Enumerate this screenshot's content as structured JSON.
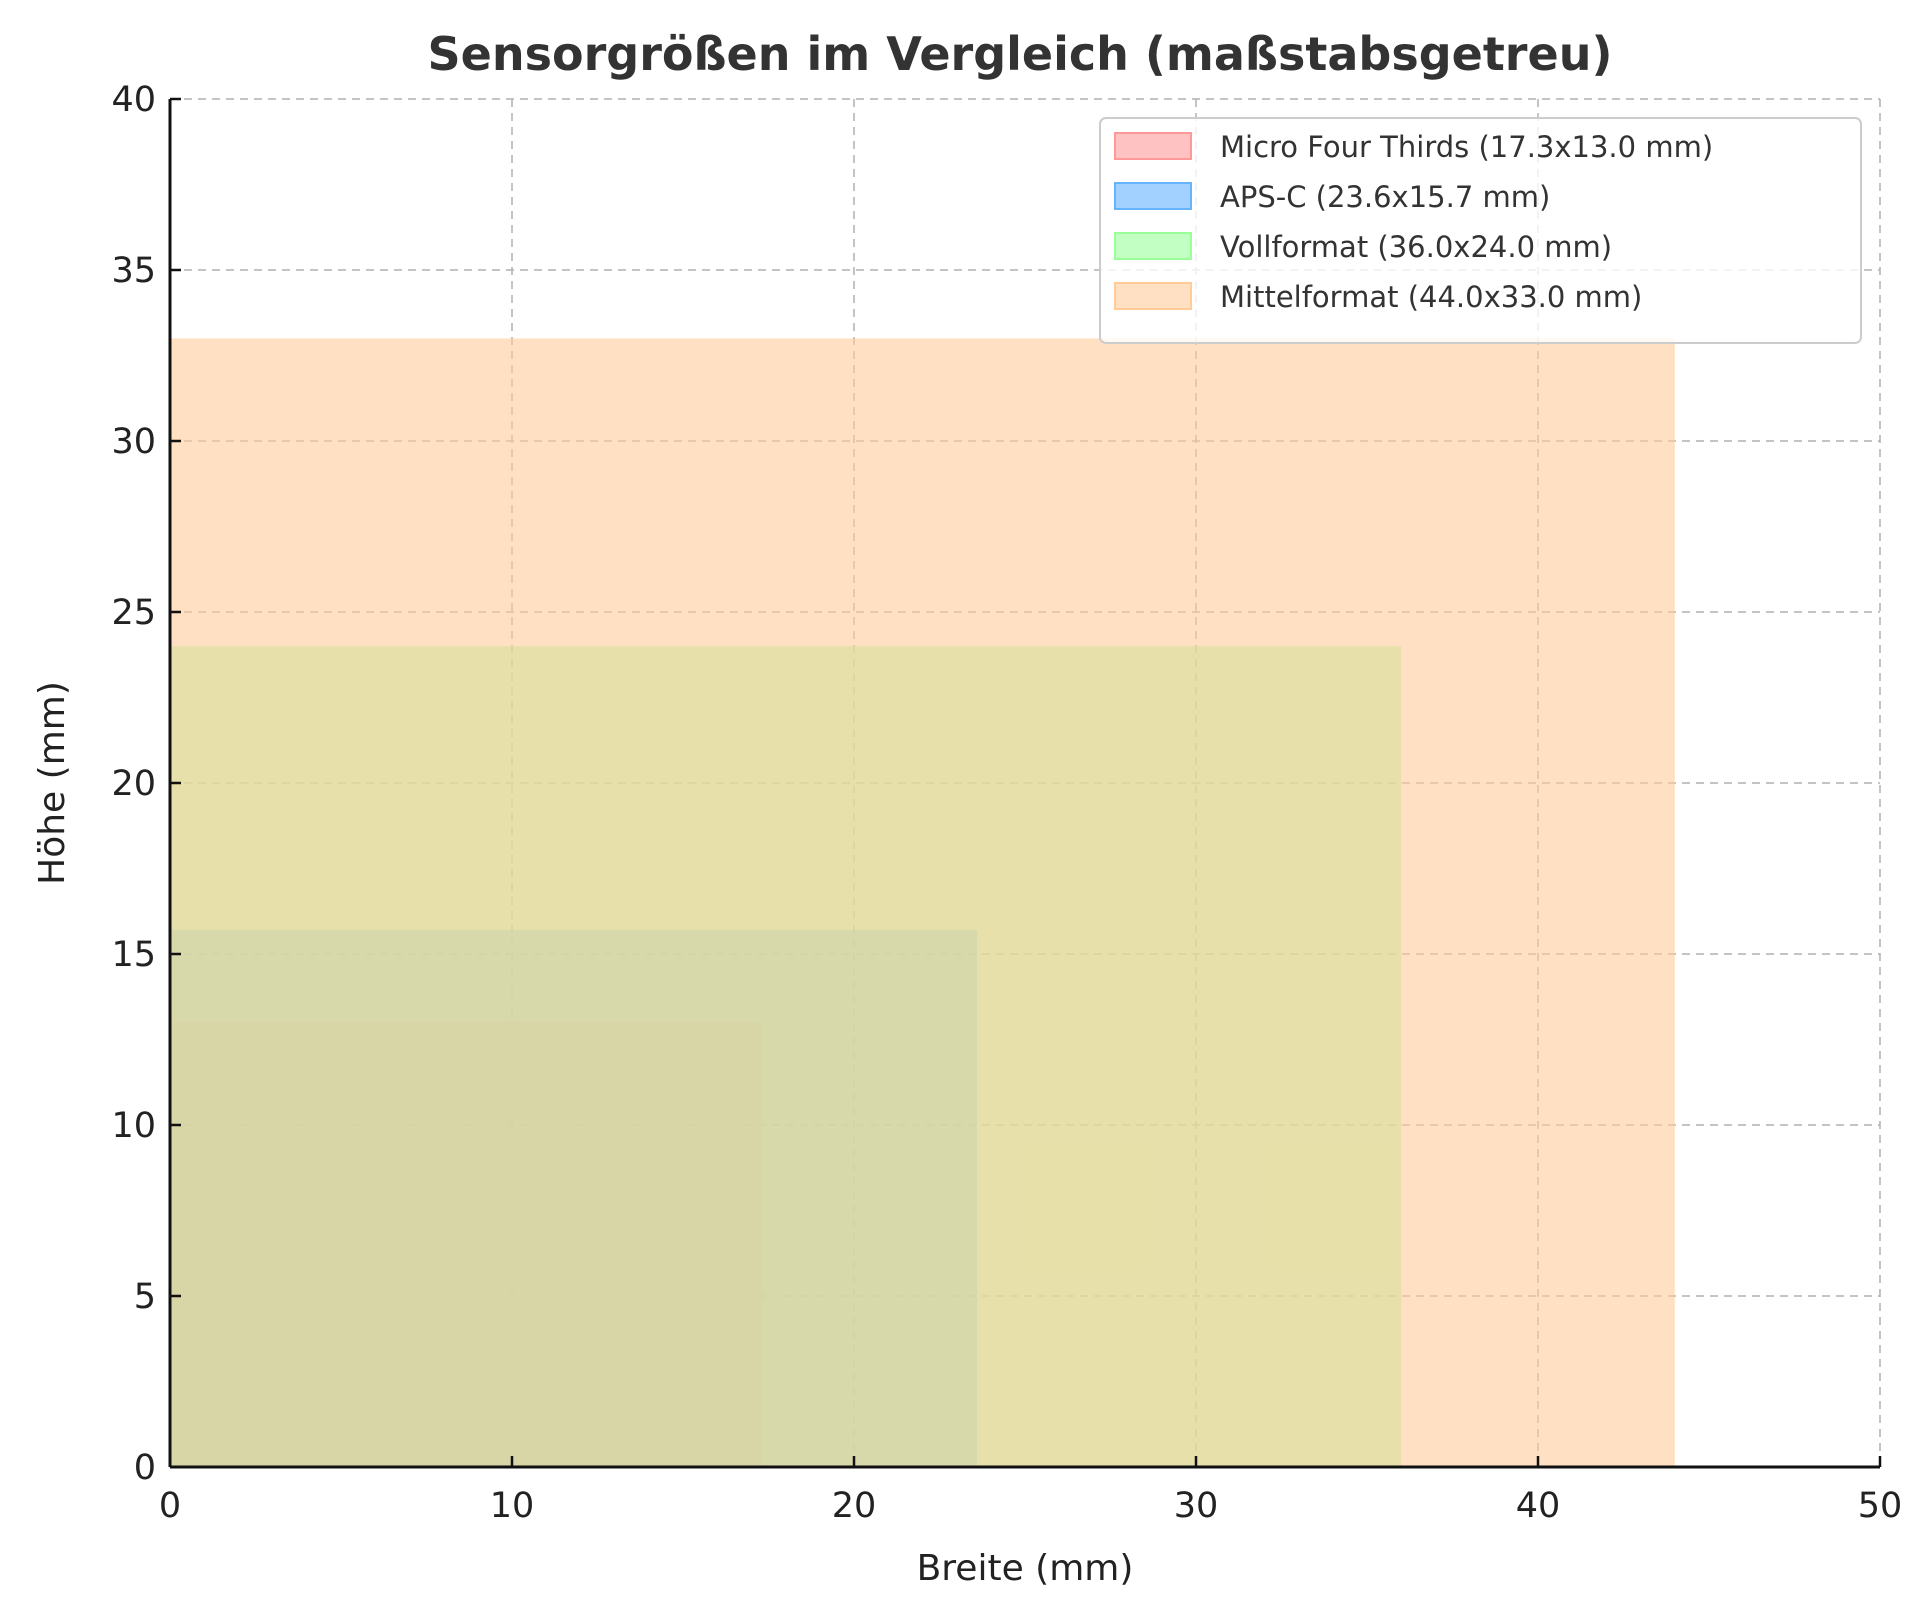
{
  "chart_data": {
    "type": "bar",
    "title": "Sensorgrößen im Vergleich (maßstabsgetreu)",
    "xlabel": "Breite (mm)",
    "ylabel": "Höhe (mm)",
    "xlim": [
      0,
      50
    ],
    "ylim": [
      0,
      40
    ],
    "xticks": [
      "0",
      "10",
      "20",
      "30",
      "40",
      "50"
    ],
    "yticks": [
      "0",
      "5",
      "10",
      "15",
      "20",
      "25",
      "30",
      "35",
      "40"
    ],
    "grid": true,
    "legend_position": "top-right",
    "series": [
      {
        "name": "Micro Four Thirds (17.3x13.0 mm)",
        "width": 17.3,
        "height": 13.0,
        "color": "#ff9999"
      },
      {
        "name": "APS-C (23.6x15.7 mm)",
        "width": 23.6,
        "height": 15.7,
        "color": "#66b3ff"
      },
      {
        "name": "Vollformat (36.0x24.0 mm)",
        "width": 36.0,
        "height": 24.0,
        "color": "#99ff99"
      },
      {
        "name": "Mittelformat (44.0x33.0 mm)",
        "width": 44.0,
        "height": 33.0,
        "color": "#ffcc99"
      }
    ]
  }
}
